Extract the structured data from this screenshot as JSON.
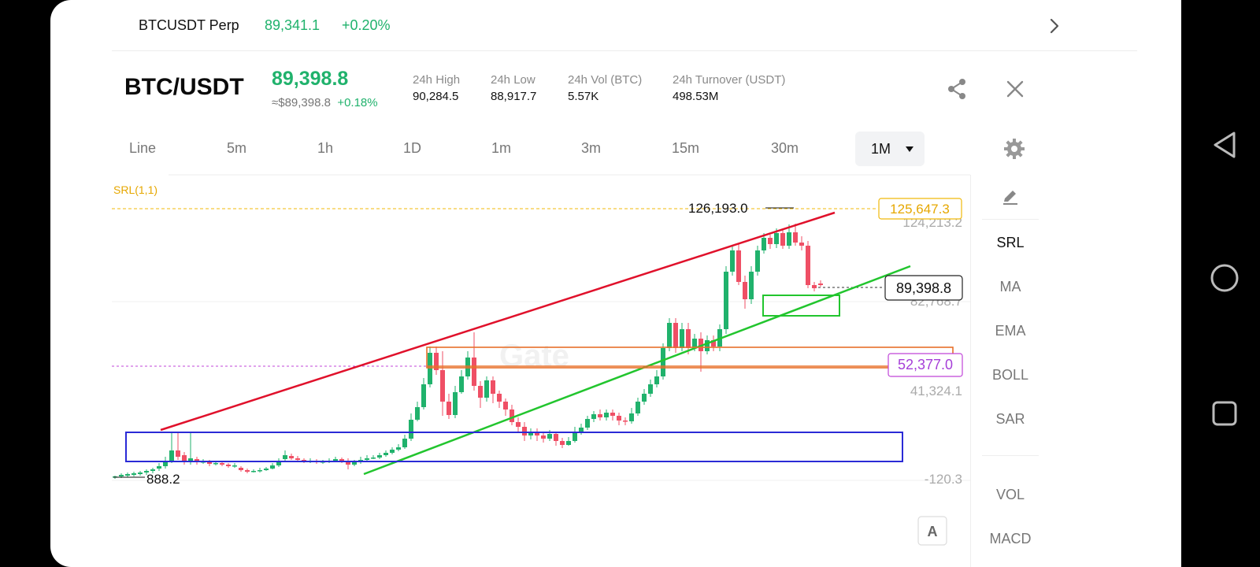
{
  "ticker": {
    "symbol": "BTCUSDT Perp",
    "price": "89,341.1",
    "change": "+0.20%"
  },
  "header": {
    "pair": "BTC/USDT",
    "last_price": "89,398.8",
    "fiat_price": "≈$89,398.8",
    "change": "+0.18%",
    "stats": [
      {
        "label": "24h High",
        "value": "90,284.5"
      },
      {
        "label": "24h Low",
        "value": "88,917.7"
      },
      {
        "label": "24h Vol (BTC)",
        "value": "5.57K"
      },
      {
        "label": "24h Turnover (USDT)",
        "value": "498.53M"
      }
    ]
  },
  "timeframes": [
    "Line",
    "5m",
    "1h",
    "1D",
    "1m",
    "3m",
    "15m",
    "30m"
  ],
  "active_timeframe": "1M",
  "indicators": [
    "SRL",
    "MA",
    "EMA",
    "BOLL",
    "SAR",
    "VOL",
    "MACD"
  ],
  "active_indicator": "SRL",
  "chart": {
    "indicator_label": "SRL(1,1)",
    "high_marker": "126,193.0",
    "low_marker": "888.2",
    "price_labels": {
      "srl_tag": "125,647.3",
      "current_tag": "89,398.8",
      "purple_tag": "52,377.0",
      "axis": [
        "124,213.2",
        "82,768.7",
        "41,324.1",
        "-120.3"
      ]
    },
    "watermark": "Gate",
    "auto_button": "A",
    "colors": {
      "up": "#20b26c",
      "down": "#ef4f65",
      "srl": "#f0b90b",
      "trend_up": "#22c52e",
      "trend_top": "#e0112b",
      "box_blue": "#2a2ad6",
      "box_orange": "#e8702a",
      "purple": "#a63fd8"
    }
  },
  "icons": [
    "chevron-right-icon",
    "share-icon",
    "close-icon",
    "settings-icon",
    "pencil-icon",
    "back-nav-icon",
    "home-nav-icon",
    "recents-nav-icon"
  ]
}
